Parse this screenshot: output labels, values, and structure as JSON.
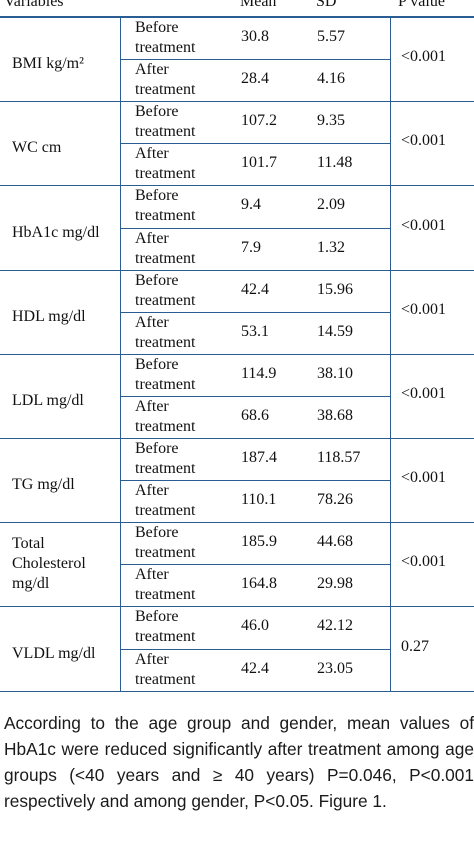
{
  "table": {
    "headers": {
      "variables": "Variables",
      "mean": "Mean",
      "sd": "SD",
      "p": "P value"
    },
    "groups": [
      {
        "variable": "BMI kg/m²",
        "p": "<0.001",
        "rows": [
          {
            "label": "Before\ntreatment",
            "mean": "30.8",
            "sd": "5.57"
          },
          {
            "label": "After\ntreatment",
            "mean": "28.4",
            "sd": "4.16"
          }
        ]
      },
      {
        "variable": "WC cm",
        "p": "<0.001",
        "rows": [
          {
            "label": "Before\ntreatment",
            "mean": "107.2",
            "sd": "9.35"
          },
          {
            "label": "After\ntreatment",
            "mean": "101.7",
            "sd": "11.48"
          }
        ]
      },
      {
        "variable": "HbA1c mg/dl",
        "p": "<0.001",
        "rows": [
          {
            "label": "Before\ntreatment",
            "mean": "9.4",
            "sd": "2.09"
          },
          {
            "label": "After\ntreatment",
            "mean": "7.9",
            "sd": "1.32"
          }
        ]
      },
      {
        "variable": "HDL mg/dl",
        "p": "<0.001",
        "rows": [
          {
            "label": "Before\ntreatment",
            "mean": "42.4",
            "sd": "15.96"
          },
          {
            "label": "After\ntreatment",
            "mean": "53.1",
            "sd": "14.59"
          }
        ]
      },
      {
        "variable": "LDL mg/dl",
        "p": "<0.001",
        "rows": [
          {
            "label": "Before\ntreatment",
            "mean": "114.9",
            "sd": "38.10"
          },
          {
            "label": "After\ntreatment",
            "mean": "68.6",
            "sd": "38.68"
          }
        ]
      },
      {
        "variable": "TG mg/dl",
        "p": "<0.001",
        "rows": [
          {
            "label": "Before\ntreatment",
            "mean": "187.4",
            "sd": "118.57"
          },
          {
            "label": "After\ntreatment",
            "mean": "110.1",
            "sd": "78.26"
          }
        ]
      },
      {
        "variable": "Total\nCholesterol\nmg/dl",
        "p": "<0.001",
        "rows": [
          {
            "label": "Before\ntreatment",
            "mean": "185.9",
            "sd": "44.68"
          },
          {
            "label": "After\ntreatment",
            "mean": "164.8",
            "sd": "29.98"
          }
        ]
      },
      {
        "variable": "VLDL mg/dl",
        "p": "0.27",
        "rows": [
          {
            "label": "Before\ntreatment",
            "mean": "46.0",
            "sd": "42.12"
          },
          {
            "label": "After\ntreatment",
            "mean": "42.4",
            "sd": "23.05"
          }
        ]
      }
    ]
  },
  "paragraph": "According to the age group and gender, mean values of HbA1c were reduced significantly after treatment among age groups (<40 years and ≥ 40 years) P=0.046, P<0.001 respectively and among gender, P<0.05. Figure 1.",
  "colors": {
    "rule": "#2a5d93",
    "text": "#111111"
  }
}
